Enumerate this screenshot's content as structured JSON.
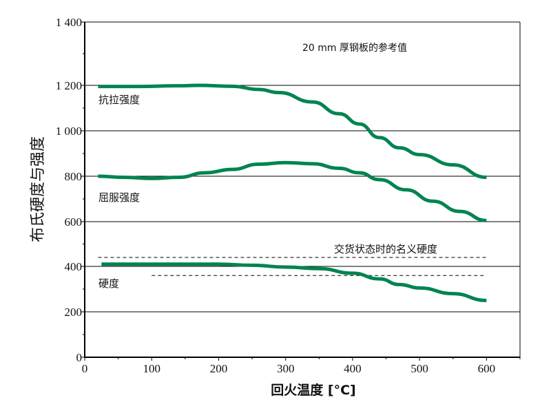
{
  "chart_data": {
    "type": "line",
    "title": "20 mm 厚钢板的参考值",
    "xlabel": "回火温度 [°C]",
    "ylabel": "布氏硬度与强度",
    "xlim": [
      0,
      650
    ],
    "ylim": [
      0,
      1400
    ],
    "x_ticks": [
      0,
      100,
      200,
      300,
      400,
      500,
      600
    ],
    "y_ticks": [
      0,
      200,
      400,
      600,
      800,
      1000,
      1200,
      1400
    ],
    "y_tick_labels": [
      "0",
      "200",
      "400",
      "600",
      "800",
      "1 000",
      "1 200",
      "1 400"
    ],
    "grid": "horizontal",
    "series": [
      {
        "name": "抗拉强度",
        "color": "#008450",
        "x": [
          20,
          80,
          140,
          170,
          220,
          260,
          290,
          340,
          380,
          410,
          440,
          470,
          500,
          550,
          600
        ],
        "y": [
          1195,
          1195,
          1198,
          1200,
          1196,
          1182,
          1168,
          1127,
          1075,
          1030,
          970,
          925,
          895,
          850,
          795
        ]
      },
      {
        "name": "屈服强度",
        "color": "#008450",
        "x": [
          20,
          60,
          100,
          140,
          180,
          220,
          260,
          300,
          340,
          380,
          410,
          440,
          480,
          520,
          560,
          600
        ],
        "y": [
          800,
          795,
          790,
          795,
          815,
          830,
          853,
          860,
          855,
          835,
          815,
          785,
          740,
          690,
          645,
          605
        ]
      },
      {
        "name": "硬度",
        "color": "#008450",
        "x": [
          25,
          200,
          250,
          300,
          350,
          400,
          440,
          470,
          500,
          550,
          600
        ],
        "y": [
          410,
          410,
          405,
          397,
          390,
          370,
          345,
          320,
          305,
          280,
          250
        ]
      }
    ],
    "reference_lines": [
      {
        "name": "交货状态时的名义硬度",
        "style": "dashed",
        "x": [
          20,
          600
        ],
        "y": 440
      },
      {
        "style": "dashed",
        "x": [
          100,
          600
        ],
        "y": 360
      }
    ]
  }
}
